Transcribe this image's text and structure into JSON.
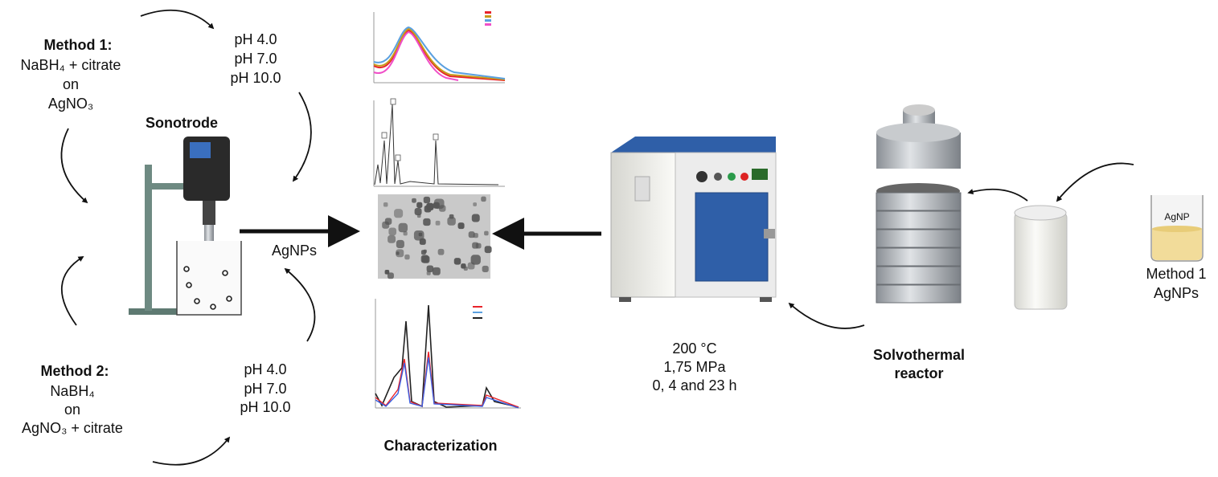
{
  "method1": {
    "title": "Method 1:",
    "line1": "NaBH₄ + citrate",
    "line2": "on",
    "line3": "AgNO₃"
  },
  "method2": {
    "title": "Method 2:",
    "line1": "NaBH₄",
    "line2": "on",
    "line3": "AgNO₃ + citrate"
  },
  "ph_top": [
    "pH 4.0",
    "pH 7.0",
    "pH 10.0"
  ],
  "ph_bottom": [
    "pH 4.0",
    "pH 7.0",
    "pH 10.0"
  ],
  "sonotrode_label": "Sonotrode",
  "agnps_label": "AgNPs",
  "characterization_label": "Characterization",
  "oven_conditions": [
    "200 °C",
    "1,75 MPa",
    "0, 4 and 23 h"
  ],
  "reactor_label": [
    "Solvothermal",
    "reactor"
  ],
  "beaker": {
    "label": "AgNP",
    "caption": [
      "Method 1",
      "AgNPs"
    ]
  },
  "colors": {
    "oven_blue": "#2f5fa8",
    "arrow": "#111111",
    "series": [
      "#e8232a",
      "#c89a1a",
      "#5aa0e0",
      "#f04fc8"
    ]
  }
}
